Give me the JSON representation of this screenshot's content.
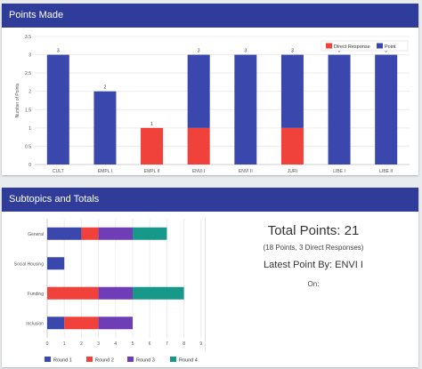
{
  "panels": {
    "points_title": "Points Made",
    "subtopics_title": "Subtopics and Totals"
  },
  "summary": {
    "total": "Total Points: 21",
    "breakdown": "(18 Points, 3 Direct Responses)",
    "latest": "Latest Point By: ENVI I",
    "on": "On:"
  },
  "colors": {
    "header": "#2f3c99",
    "point": "#3a48ad",
    "direct_response": "#f0413a",
    "round1": "#3a48ad",
    "round2": "#f0413a",
    "round3": "#6f3db5",
    "round4": "#17998a"
  },
  "chart_data": [
    {
      "type": "bar",
      "stacked": true,
      "categories": [
        "CULT",
        "EMPL I",
        "EMPL II",
        "ENVI I",
        "ENVI II",
        "JURI",
        "LIBE I",
        "LIBE II"
      ],
      "series": [
        {
          "name": "Point",
          "values": [
            3,
            2,
            0,
            2,
            3,
            2,
            3,
            3
          ]
        },
        {
          "name": "Direct Response",
          "values": [
            0,
            0,
            1,
            1,
            0,
            1,
            0,
            0
          ]
        }
      ],
      "totals": [
        3,
        2,
        1,
        3,
        3,
        3,
        3,
        3
      ],
      "ylabel": "Number of Points",
      "ylim": [
        0,
        3.5
      ],
      "yticks": [
        0,
        0.5,
        1,
        1.5,
        2,
        2.5,
        3,
        3.5
      ],
      "grid": true,
      "legend": "top-right"
    },
    {
      "type": "bar",
      "orientation": "horizontal",
      "stacked": true,
      "categories": [
        "General",
        "Social Housing",
        "Funding",
        "Inclusion"
      ],
      "series": [
        {
          "name": "Round 1",
          "values": [
            2,
            1,
            0,
            1
          ]
        },
        {
          "name": "Round 2",
          "values": [
            1,
            0,
            3,
            2
          ]
        },
        {
          "name": "Round 3",
          "values": [
            2,
            0,
            2,
            2
          ]
        },
        {
          "name": "Round 4",
          "values": [
            2,
            0,
            3,
            0
          ]
        }
      ],
      "xlim": [
        0,
        9
      ],
      "xticks": [
        0,
        1,
        2,
        3,
        4,
        5,
        6,
        7,
        8,
        9
      ],
      "grid": true,
      "legend": "bottom"
    }
  ]
}
